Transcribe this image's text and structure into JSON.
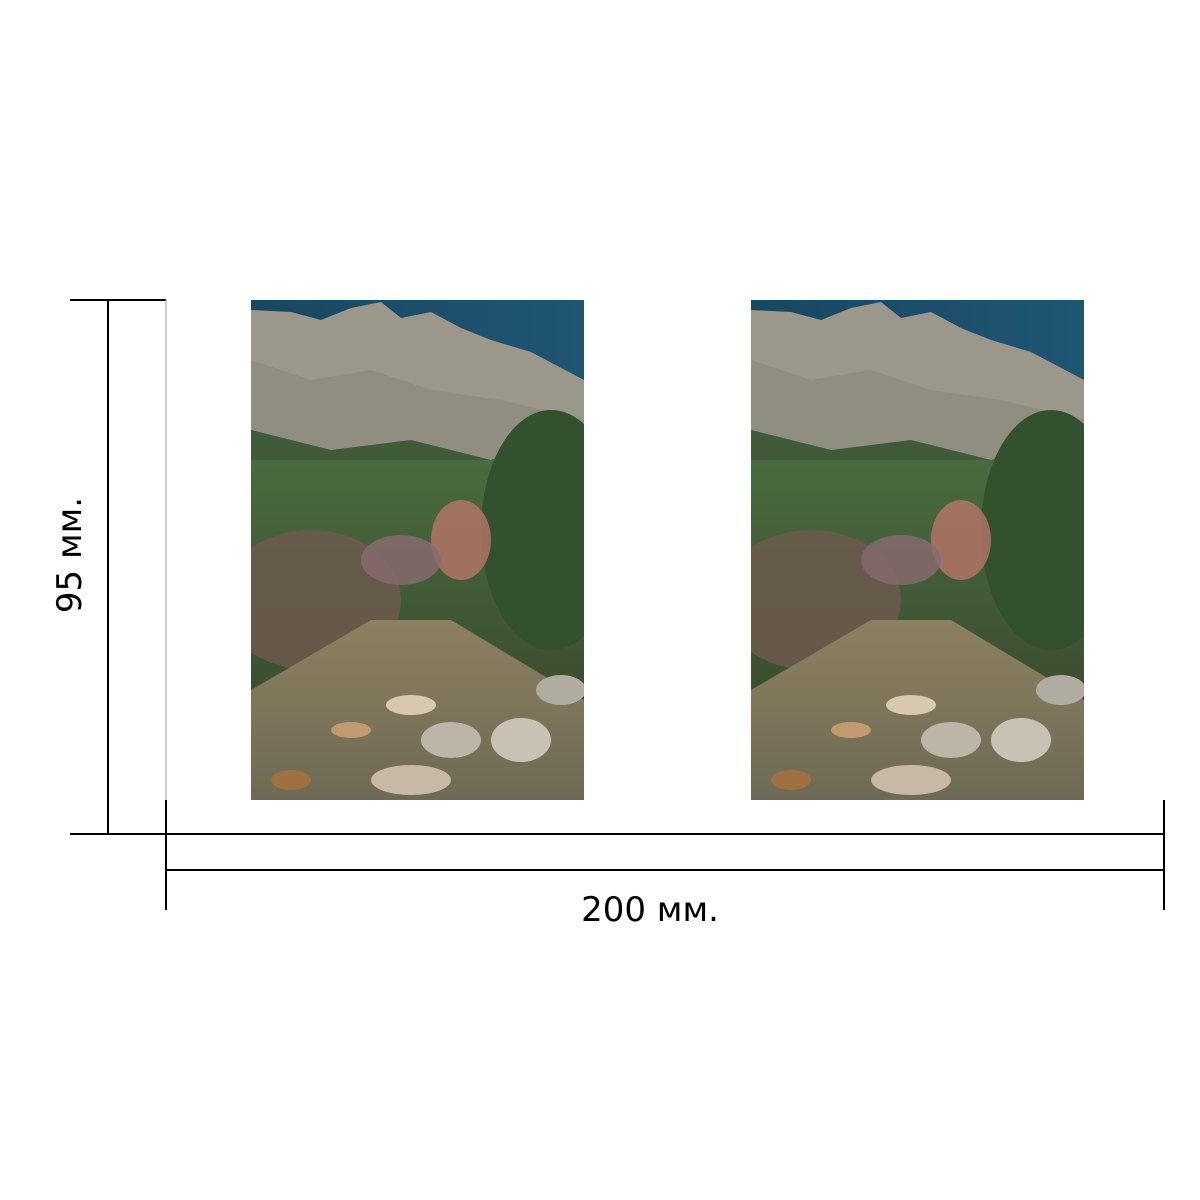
{
  "dimensions": {
    "height_label": "95 мм.",
    "width_label": "200 мм."
  },
  "photos": [
    {
      "subject": "mountain-landscape"
    },
    {
      "subject": "mountain-landscape"
    }
  ],
  "colors": {
    "line": "#000000",
    "sky": "#1d4f6e",
    "rock": "#9a978c",
    "vegetation": "#3f5a36"
  }
}
